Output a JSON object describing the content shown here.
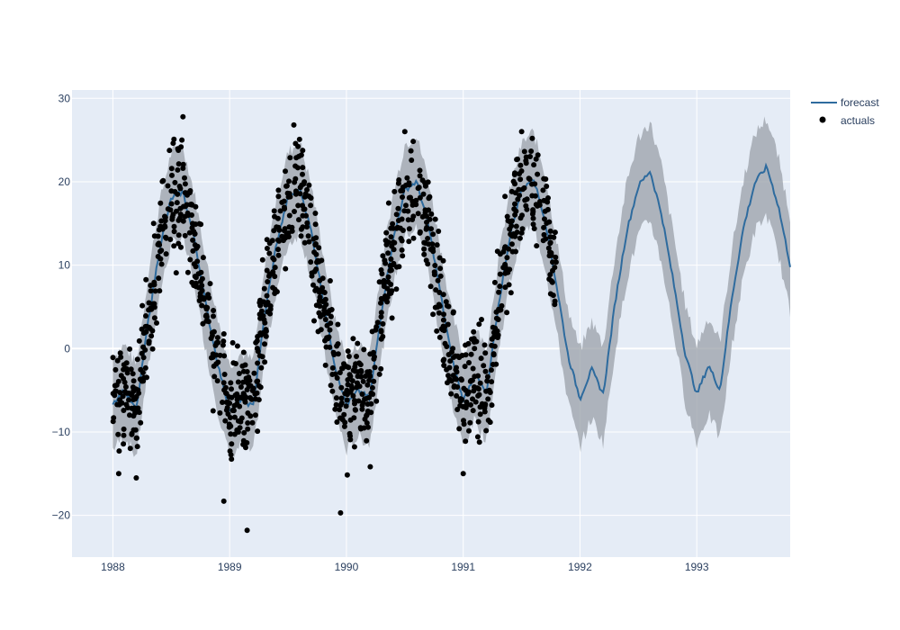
{
  "chart_data": {
    "type": "line",
    "title": "",
    "xlabel": "",
    "ylabel": "",
    "xlim": [
      1987.65,
      1993.8
    ],
    "ylim": [
      -25,
      31
    ],
    "x_ticks": [
      1988,
      1989,
      1990,
      1991,
      1992,
      1993
    ],
    "x_tick_labels": [
      "1988",
      "1989",
      "1990",
      "1991",
      "1992",
      "1993"
    ],
    "y_ticks": [
      -20,
      -10,
      0,
      10,
      20,
      30
    ],
    "y_tick_labels": [
      "−20",
      "−10",
      "0",
      "10",
      "20",
      "30"
    ],
    "grid": true,
    "legend_position": "top-right",
    "actuals_range": [
      1988.0,
      1991.8
    ],
    "series": [
      {
        "name": "forecast",
        "kind": "line",
        "color": "#2e6b9e",
        "x": [
          1988.0,
          1988.1,
          1988.2,
          1988.3,
          1988.4,
          1988.5,
          1988.6,
          1988.7,
          1988.8,
          1988.9,
          1989.0,
          1989.1,
          1989.2,
          1989.3,
          1989.4,
          1989.5,
          1989.6,
          1989.7,
          1989.8,
          1989.9,
          1990.0,
          1990.1,
          1990.2,
          1990.3,
          1990.4,
          1990.5,
          1990.6,
          1990.7,
          1990.8,
          1990.9,
          1991.0,
          1991.1,
          1991.2,
          1991.3,
          1991.4,
          1991.5,
          1991.6,
          1991.7,
          1991.8,
          1991.9,
          1992.0,
          1992.1,
          1992.2,
          1992.3,
          1992.4,
          1992.5,
          1992.6,
          1992.7,
          1992.8,
          1992.9,
          1993.0,
          1993.1,
          1993.2,
          1993.3,
          1993.4,
          1993.5,
          1993.6,
          1993.7,
          1993.8
        ],
        "y": [
          -6.5,
          -5.0,
          -7.5,
          3.0,
          12.0,
          18.0,
          18.8,
          13.0,
          5.0,
          -2.0,
          -7.5,
          -6.0,
          -7.0,
          4.0,
          12.5,
          18.0,
          19.3,
          14.0,
          6.0,
          -2.0,
          -6.8,
          -5.0,
          -6.0,
          4.5,
          13.0,
          19.0,
          20.0,
          15.0,
          7.0,
          -1.0,
          -6.3,
          -3.0,
          -5.5,
          5.0,
          13.5,
          19.0,
          20.5,
          15.5,
          7.5,
          -1.0,
          -6.0,
          -2.5,
          -5.5,
          5.5,
          14.0,
          19.5,
          21.3,
          16.0,
          8.0,
          -0.5,
          -5.5,
          -2.0,
          -5.0,
          6.0,
          14.5,
          20.0,
          21.8,
          17.0,
          10.0
        ]
      },
      {
        "name": "",
        "kind": "uncertainty-band",
        "color": "#9aa0a8",
        "x": [
          1988.0,
          1988.1,
          1988.2,
          1988.3,
          1988.4,
          1988.5,
          1988.6,
          1988.7,
          1988.8,
          1988.9,
          1989.0,
          1989.1,
          1989.2,
          1989.3,
          1989.4,
          1989.5,
          1989.6,
          1989.7,
          1989.8,
          1989.9,
          1990.0,
          1990.1,
          1990.2,
          1990.3,
          1990.4,
          1990.5,
          1990.6,
          1990.7,
          1990.8,
          1990.9,
          1991.0,
          1991.1,
          1991.2,
          1991.3,
          1991.4,
          1991.5,
          1991.6,
          1991.7,
          1991.8,
          1991.9,
          1992.0,
          1992.1,
          1992.2,
          1992.3,
          1992.4,
          1992.5,
          1992.6,
          1992.7,
          1992.8,
          1992.9,
          1993.0,
          1993.1,
          1993.2,
          1993.3,
          1993.4,
          1993.5,
          1993.6,
          1993.7,
          1993.8
        ],
        "lower": [
          -12.0,
          -10.5,
          -13.0,
          -2.5,
          6.5,
          12.5,
          13.3,
          7.5,
          -0.5,
          -7.5,
          -13.0,
          -11.5,
          -12.5,
          -1.5,
          7.0,
          12.5,
          13.8,
          8.5,
          0.5,
          -7.5,
          -12.3,
          -10.5,
          -11.5,
          -1.0,
          7.5,
          13.5,
          14.5,
          9.5,
          1.5,
          -6.5,
          -11.8,
          -8.5,
          -11.0,
          -0.5,
          8.0,
          13.5,
          15.0,
          10.0,
          2.0,
          -6.5,
          -11.8,
          -8.3,
          -11.3,
          -0.3,
          8.2,
          13.7,
          15.5,
          10.2,
          2.2,
          -6.3,
          -11.3,
          -7.8,
          -10.8,
          0.2,
          8.7,
          14.2,
          16.0,
          11.2,
          4.2
        ],
        "upper": [
          -1.0,
          0.5,
          -2.0,
          8.5,
          17.5,
          23.5,
          24.3,
          18.5,
          10.5,
          3.5,
          -2.0,
          -0.5,
          -1.5,
          9.5,
          18.0,
          23.5,
          24.8,
          19.5,
          11.5,
          3.5,
          -1.3,
          0.5,
          -0.5,
          10.0,
          18.5,
          24.5,
          25.5,
          20.5,
          12.5,
          4.5,
          -0.8,
          2.5,
          0.0,
          10.5,
          19.0,
          24.5,
          26.0,
          21.0,
          13.0,
          4.5,
          -0.2,
          3.3,
          0.3,
          11.3,
          19.8,
          25.3,
          27.1,
          21.8,
          13.8,
          5.3,
          0.3,
          3.8,
          0.8,
          11.8,
          20.3,
          25.8,
          27.6,
          22.8,
          15.8
        ]
      },
      {
        "name": "actuals",
        "kind": "markers",
        "color": "#000000",
        "note_points": "individual daily observations scattered around the forecast between 1988 and 1991.8",
        "notable_points": [
          {
            "x": 1988.05,
            "y": -15.0
          },
          {
            "x": 1988.2,
            "y": -15.5
          },
          {
            "x": 1988.6,
            "y": 27.8
          },
          {
            "x": 1988.95,
            "y": -18.3
          },
          {
            "x": 1989.15,
            "y": -21.8
          },
          {
            "x": 1989.55,
            "y": 26.8
          },
          {
            "x": 1989.95,
            "y": -19.7
          },
          {
            "x": 1990.5,
            "y": 26.0
          },
          {
            "x": 1991.0,
            "y": -15.0
          },
          {
            "x": 1991.5,
            "y": 26.0
          }
        ]
      }
    ]
  }
}
